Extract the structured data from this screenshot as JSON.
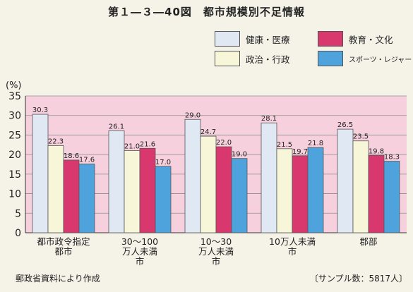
{
  "chart_data": {
    "type": "bar",
    "title": "第１―３―40図　都市規模別不足情報",
    "ylabel": "(%)",
    "ylim": [
      0,
      35
    ],
    "yticks": [
      0,
      5,
      10,
      15,
      20,
      25,
      30,
      35
    ],
    "categories": [
      [
        "都市政令指定",
        "都市"
      ],
      [
        "30～100",
        "万人未満",
        "市"
      ],
      [
        "10～30",
        "万人未満",
        "市"
      ],
      [
        "10万人未満",
        "市"
      ],
      [
        "郡部"
      ]
    ],
    "series": [
      {
        "name": "健康・医療",
        "color": "#dfe8f3",
        "values": [
          30.3,
          26.1,
          29.0,
          28.1,
          26.5
        ]
      },
      {
        "name": "政治・行政",
        "color": "#f7f6d8",
        "values": [
          22.3,
          21.0,
          24.7,
          21.5,
          23.5
        ]
      },
      {
        "name": "教育・文化",
        "color": "#d8386e",
        "values": [
          18.6,
          21.6,
          22.0,
          19.7,
          19.8
        ]
      },
      {
        "name": "スポーツ・レジャー",
        "color": "#4ea3dc",
        "values": [
          17.6,
          17.0,
          19.0,
          21.8,
          18.3
        ]
      }
    ],
    "value_labels": [
      [
        "30.3",
        "22.3",
        "18.6",
        "17.6"
      ],
      [
        "26.1",
        "21.0",
        "21.6",
        "17.0"
      ],
      [
        "29.0",
        "24.7",
        "22.0",
        "19.0"
      ],
      [
        "28.1",
        "21.5",
        "19.7",
        "21.8"
      ],
      [
        "26.5",
        "23.5",
        "19.8",
        "18.3"
      ]
    ],
    "background_color": "#f7d0de",
    "source": "郵政省資料により作成",
    "sample": "〔サンプル数：5817人〕"
  }
}
